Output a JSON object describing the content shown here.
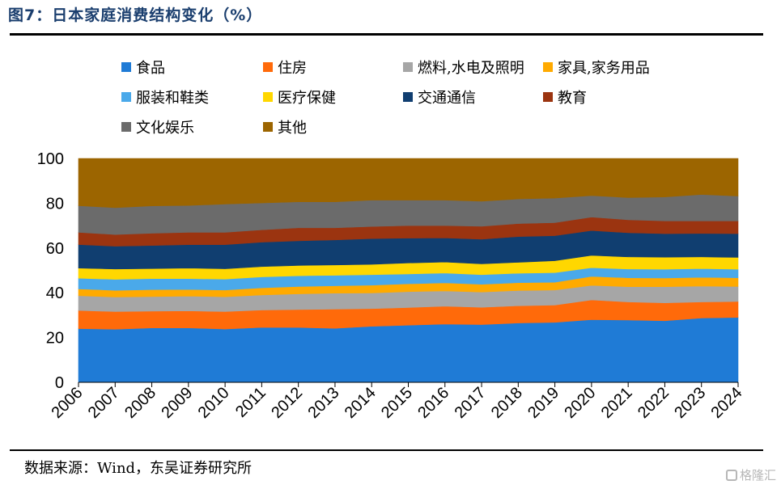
{
  "header": {
    "title": "图7：日本家庭消费结构变化（%）"
  },
  "footer": {
    "source": "数据来源：Wind，东吴证券研究所",
    "watermark": "格隆汇"
  },
  "chart_data": {
    "type": "area",
    "stacked": true,
    "x": [
      "2006",
      "2007",
      "2008",
      "2009",
      "2010",
      "2011",
      "2012",
      "2013",
      "2014",
      "2015",
      "2016",
      "2017",
      "2018",
      "2019",
      "2020",
      "2021",
      "2022",
      "2023",
      "2024"
    ],
    "ylim": [
      0,
      100
    ],
    "yticks": [
      0,
      20,
      40,
      60,
      80,
      100
    ],
    "legend_position": "top",
    "grid": false,
    "series": [
      {
        "name": "食品",
        "color": "#1f7bd6",
        "values": [
          24.0,
          23.7,
          24.3,
          24.3,
          23.8,
          24.5,
          24.5,
          24.1,
          25.0,
          25.5,
          26.0,
          25.8,
          26.5,
          26.8,
          28.0,
          27.8,
          27.5,
          28.7,
          29.0
        ]
      },
      {
        "name": "住房",
        "color": "#ff6a0a",
        "values": [
          8.1,
          7.9,
          7.5,
          7.6,
          7.8,
          7.8,
          8.0,
          8.6,
          7.9,
          7.9,
          8.0,
          7.7,
          7.7,
          7.7,
          8.8,
          8.1,
          8.0,
          7.2,
          7.1
        ]
      },
      {
        "name": "燃料,水电及照明",
        "color": "#a6a6a6",
        "values": [
          6.6,
          6.5,
          6.5,
          6.6,
          6.6,
          6.7,
          7.0,
          7.1,
          7.0,
          7.1,
          6.8,
          6.8,
          6.8,
          6.7,
          6.5,
          6.8,
          7.2,
          7.1,
          6.7
        ]
      },
      {
        "name": "家具,家务用品",
        "color": "#ffaa00",
        "values": [
          3.0,
          3.0,
          3.1,
          3.0,
          3.0,
          3.2,
          3.3,
          3.3,
          3.5,
          3.5,
          3.6,
          3.5,
          3.5,
          3.5,
          4.0,
          4.0,
          3.9,
          3.9,
          3.9
        ]
      },
      {
        "name": "服装和鞋类",
        "color": "#4aa9ea",
        "values": [
          4.8,
          4.9,
          4.9,
          4.8,
          4.9,
          4.9,
          4.8,
          4.7,
          4.7,
          4.4,
          4.4,
          4.3,
          4.2,
          4.3,
          3.9,
          3.9,
          3.9,
          3.9,
          3.8
        ]
      },
      {
        "name": "医疗保健",
        "color": "#ffd700",
        "values": [
          4.5,
          4.6,
          4.5,
          4.7,
          4.6,
          4.6,
          4.6,
          4.6,
          4.6,
          4.9,
          4.9,
          4.8,
          4.9,
          5.3,
          5.5,
          5.4,
          5.4,
          5.2,
          5.3
        ]
      },
      {
        "name": "交通通信",
        "color": "#103e70",
        "values": [
          10.5,
          10.2,
          10.3,
          10.5,
          10.8,
          10.9,
          11.0,
          11.2,
          11.5,
          11.1,
          10.8,
          11.0,
          11.5,
          11.2,
          11.1,
          10.8,
          10.5,
          10.5,
          10.6
        ]
      },
      {
        "name": "教育",
        "color": "#9b3410",
        "values": [
          5.5,
          5.2,
          5.5,
          5.5,
          5.5,
          5.5,
          5.8,
          5.4,
          5.4,
          5.6,
          5.5,
          5.8,
          5.8,
          5.8,
          6.0,
          5.8,
          5.7,
          5.6,
          5.7
        ]
      },
      {
        "name": "文化娱乐",
        "color": "#6b6b6b",
        "values": [
          11.9,
          12.0,
          12.2,
          12.0,
          12.6,
          12.0,
          11.6,
          11.6,
          11.8,
          11.4,
          11.4,
          11.2,
          11.0,
          11.0,
          9.6,
          9.9,
          10.7,
          11.8,
          11.1
        ]
      },
      {
        "name": "其他",
        "color": "#9c6500",
        "values": [
          21.1,
          22.0,
          21.2,
          21.0,
          20.4,
          19.9,
          19.4,
          19.4,
          18.6,
          18.6,
          18.6,
          19.1,
          18.1,
          17.7,
          16.6,
          17.5,
          17.2,
          16.1,
          16.8
        ]
      }
    ]
  }
}
